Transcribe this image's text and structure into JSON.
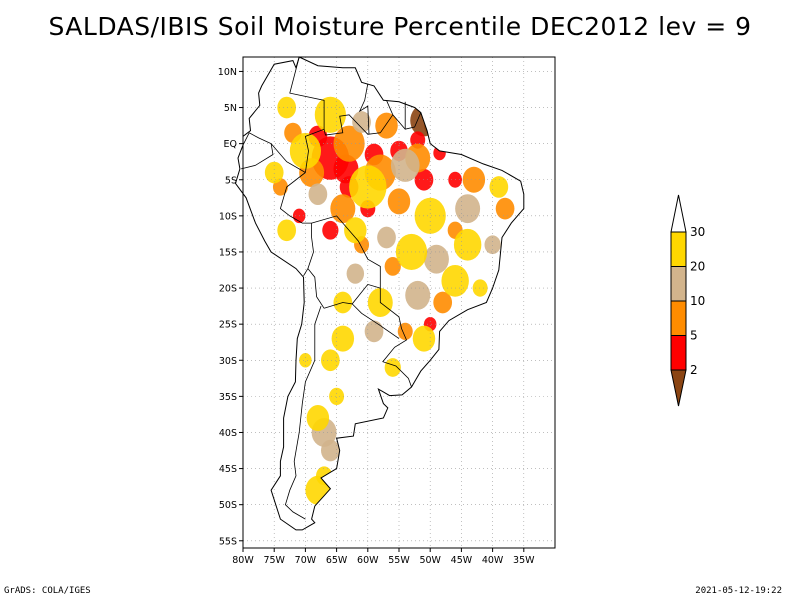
{
  "title": "SALDAS/IBIS Soil Moisture Percentile DEC2012 lev = 9",
  "footer": {
    "credit": "GrADS: COLA/IGES",
    "timestamp": "2021-05-12-19:22"
  },
  "map": {
    "lon_range": [
      -80,
      -30
    ],
    "lat_range": [
      -56,
      12
    ],
    "lat_ticks": [
      {
        "lat": 10,
        "label": "10N"
      },
      {
        "lat": 5,
        "label": "5N"
      },
      {
        "lat": 0,
        "label": "EQ"
      },
      {
        "lat": -5,
        "label": "5S"
      },
      {
        "lat": -10,
        "label": "10S"
      },
      {
        "lat": -15,
        "label": "15S"
      },
      {
        "lat": -20,
        "label": "20S"
      },
      {
        "lat": -25,
        "label": "25S"
      },
      {
        "lat": -30,
        "label": "30S"
      },
      {
        "lat": -35,
        "label": "35S"
      },
      {
        "lat": -40,
        "label": "40S"
      },
      {
        "lat": -45,
        "label": "45S"
      },
      {
        "lat": -50,
        "label": "50S"
      },
      {
        "lat": -55,
        "label": "55S"
      }
    ],
    "lon_ticks": [
      {
        "lon": -80,
        "label": "80W"
      },
      {
        "lon": -75,
        "label": "75W"
      },
      {
        "lon": -70,
        "label": "70W"
      },
      {
        "lon": -65,
        "label": "65W"
      },
      {
        "lon": -60,
        "label": "60W"
      },
      {
        "lon": -55,
        "label": "55W"
      },
      {
        "lon": -50,
        "label": "50W"
      },
      {
        "lon": -45,
        "label": "45W"
      },
      {
        "lon": -40,
        "label": "40W"
      },
      {
        "lon": -35,
        "label": "35W"
      }
    ],
    "grid": true,
    "coastline": [
      [
        -77,
        8
      ],
      [
        -75,
        11
      ],
      [
        -72,
        11.5
      ],
      [
        -71.5,
        10.5
      ],
      [
        -71,
        12
      ],
      [
        -68,
        10.8
      ],
      [
        -64,
        10.5
      ],
      [
        -62,
        10.5
      ],
      [
        -61,
        8.5
      ],
      [
        -59,
        8
      ],
      [
        -57.5,
        6
      ],
      [
        -55,
        5.8
      ],
      [
        -52.5,
        5
      ],
      [
        -51.5,
        4.3
      ],
      [
        -50.5,
        1.8
      ],
      [
        -50,
        0
      ],
      [
        -48.5,
        -1
      ],
      [
        -45,
        -1.5
      ],
      [
        -41.5,
        -2.8
      ],
      [
        -38.5,
        -3.7
      ],
      [
        -35.5,
        -5.2
      ],
      [
        -35,
        -7
      ],
      [
        -35,
        -9
      ],
      [
        -37,
        -11
      ],
      [
        -38.5,
        -13
      ],
      [
        -39,
        -17.5
      ],
      [
        -40,
        -20
      ],
      [
        -41,
        -22
      ],
      [
        -44,
        -23
      ],
      [
        -47,
        -24.5
      ],
      [
        -48.5,
        -26
      ],
      [
        -48.6,
        -28.5
      ],
      [
        -50,
        -30
      ],
      [
        -51.5,
        -31.5
      ],
      [
        -53,
        -33.7
      ],
      [
        -54.5,
        -34.8
      ],
      [
        -56.5,
        -34.9
      ],
      [
        -58.3,
        -34
      ],
      [
        -57.5,
        -36
      ],
      [
        -56.8,
        -36.6
      ],
      [
        -57.5,
        -38
      ],
      [
        -62,
        -38.8
      ],
      [
        -62.3,
        -40.5
      ],
      [
        -65,
        -40.8
      ],
      [
        -64.5,
        -42.5
      ],
      [
        -65,
        -45
      ],
      [
        -67.5,
        -46.3
      ],
      [
        -66,
        -47.8
      ],
      [
        -68.5,
        -50.2
      ],
      [
        -69,
        -52
      ],
      [
        -68.5,
        -52.5
      ],
      [
        -70.5,
        -53.5
      ],
      [
        -71.5,
        -53.5
      ],
      [
        -74,
        -52
      ],
      [
        -75.5,
        -48
      ],
      [
        -74,
        -46
      ],
      [
        -74,
        -44
      ],
      [
        -73.5,
        -42
      ],
      [
        -73.5,
        -38
      ],
      [
        -72.8,
        -35
      ],
      [
        -71.6,
        -33
      ],
      [
        -71.5,
        -30
      ],
      [
        -71.3,
        -27
      ],
      [
        -70.6,
        -25
      ],
      [
        -70.2,
        -22
      ],
      [
        -70.3,
        -18.5
      ],
      [
        -71.5,
        -17.3
      ],
      [
        -75.5,
        -15
      ],
      [
        -76.5,
        -13.5
      ],
      [
        -78,
        -11
      ],
      [
        -79.5,
        -7.5
      ],
      [
        -81.2,
        -5.5
      ],
      [
        -80.5,
        -3.5
      ],
      [
        -80.8,
        -2
      ],
      [
        -80,
        -0.2
      ],
      [
        -80,
        1
      ],
      [
        -78.8,
        1.8
      ],
      [
        -79,
        3.5
      ],
      [
        -77.3,
        5.3
      ],
      [
        -77.5,
        7
      ],
      [
        -77,
        8
      ]
    ],
    "borders": [
      [
        [
          -71,
          12
        ],
        [
          -72.5,
          7
        ],
        [
          -67,
          6
        ],
        [
          -67,
          2
        ],
        [
          -70,
          1
        ],
        [
          -69.5,
          -1
        ],
        [
          -70,
          -4
        ]
      ],
      [
        [
          -70,
          -4
        ],
        [
          -73,
          -6
        ],
        [
          -74,
          -9
        ],
        [
          -72.5,
          -10
        ],
        [
          -70.5,
          -11
        ],
        [
          -69,
          -11
        ]
      ],
      [
        [
          -69,
          -11
        ],
        [
          -65,
          -10
        ],
        [
          -61.5,
          -13.5
        ],
        [
          -60,
          -16
        ],
        [
          -58,
          -17
        ],
        [
          -58,
          -20
        ],
        [
          -58,
          -22
        ],
        [
          -55,
          -24
        ],
        [
          -54.6,
          -25.6
        ]
      ],
      [
        [
          -54.6,
          -25.6
        ],
        [
          -53.8,
          -27.2
        ],
        [
          -55.7,
          -28.2
        ],
        [
          -57.6,
          -30.2
        ],
        [
          -55.5,
          -30.8
        ],
        [
          -53.5,
          -32.5
        ],
        [
          -53,
          -33.7
        ]
      ],
      [
        [
          -56,
          4
        ],
        [
          -58,
          1.5
        ],
        [
          -60,
          1.3
        ],
        [
          -63,
          4
        ],
        [
          -64.5,
          3.8
        ],
        [
          -64,
          1.5
        ],
        [
          -66.8,
          1.2
        ],
        [
          -67,
          2
        ]
      ],
      [
        [
          -57,
          6
        ],
        [
          -56,
          4
        ],
        [
          -54,
          2
        ],
        [
          -52.5,
          2.3
        ],
        [
          -51.5,
          4.3
        ]
      ],
      [
        [
          -54,
          5.8
        ],
        [
          -54,
          2
        ]
      ],
      [
        [
          -60,
          8.3
        ],
        [
          -60.5,
          6
        ],
        [
          -61.3,
          4.5
        ],
        [
          -60,
          5.2
        ],
        [
          -59.8,
          1.3
        ]
      ],
      [
        [
          -80,
          -0.2
        ],
        [
          -79,
          1.5
        ],
        [
          -77.5,
          0.8
        ],
        [
          -75.5,
          0
        ],
        [
          -75.2,
          -1.5
        ],
        [
          -78,
          -3
        ],
        [
          -80.3,
          -3.5
        ]
      ],
      [
        [
          -75.5,
          0
        ],
        [
          -73,
          -2.5
        ],
        [
          -70,
          -4
        ]
      ],
      [
        [
          -69,
          -11
        ],
        [
          -69,
          -13
        ],
        [
          -68.7,
          -15
        ],
        [
          -69.6,
          -17.3
        ],
        [
          -68.5,
          -18.5
        ],
        [
          -68.2,
          -21.2
        ],
        [
          -67,
          -22.8
        ]
      ],
      [
        [
          -70.3,
          -18.3
        ],
        [
          -69.6,
          -17.3
        ]
      ],
      [
        [
          -67,
          -22.8
        ],
        [
          -64,
          -22
        ],
        [
          -62.5,
          -22.2
        ],
        [
          -60,
          -19.5
        ],
        [
          -58,
          -20
        ]
      ],
      [
        [
          -62.5,
          -22.2
        ],
        [
          -61,
          -23.5
        ],
        [
          -58,
          -25.2
        ],
        [
          -55,
          -27
        ]
      ],
      [
        [
          -67.5,
          -22.5
        ],
        [
          -68.5,
          -25
        ],
        [
          -68.5,
          -30
        ],
        [
          -70,
          -33
        ],
        [
          -70.5,
          -36
        ],
        [
          -71,
          -40
        ],
        [
          -71.8,
          -44
        ],
        [
          -71.5,
          -46
        ],
        [
          -72.5,
          -48
        ],
        [
          -73.2,
          -50
        ],
        [
          -72,
          -51
        ],
        [
          -70,
          -52
        ]
      ]
    ],
    "soil_patches": [
      {
        "lon": -51,
        "lat": 3.2,
        "r": 2.2,
        "cls": "lt2"
      },
      {
        "lon": -49.5,
        "lat": 2.5,
        "r": 1.5,
        "cls": "lt2"
      },
      {
        "lon": -52,
        "lat": 0.5,
        "r": 1.2,
        "cls": "p2-5"
      },
      {
        "lon": -48.5,
        "lat": -1.3,
        "r": 1,
        "cls": "p2-5"
      },
      {
        "lon": -66,
        "lat": -2,
        "r": 3,
        "cls": "p2-5"
      },
      {
        "lon": -63.5,
        "lat": -3.5,
        "r": 2,
        "cls": "p2-5"
      },
      {
        "lon": -68,
        "lat": 1,
        "r": 1.5,
        "cls": "p2-5"
      },
      {
        "lon": -59,
        "lat": -1.5,
        "r": 1.5,
        "cls": "p2-5"
      },
      {
        "lon": -55,
        "lat": -1,
        "r": 1.4,
        "cls": "p2-5"
      },
      {
        "lon": -51,
        "lat": -5,
        "r": 1.5,
        "cls": "p2-5"
      },
      {
        "lon": -46,
        "lat": -5,
        "r": 1.1,
        "cls": "p2-5"
      },
      {
        "lon": -66,
        "lat": -12,
        "r": 1.3,
        "cls": "p2-5"
      },
      {
        "lon": -71,
        "lat": -10,
        "r": 1,
        "cls": "p2-5"
      },
      {
        "lon": -60,
        "lat": -9,
        "r": 1.2,
        "cls": "p2-5"
      },
      {
        "lon": -50,
        "lat": -25,
        "r": 1,
        "cls": "p2-5"
      },
      {
        "lon": -63,
        "lat": -6,
        "r": 1.5,
        "cls": "p2-5"
      },
      {
        "lon": -63,
        "lat": 0,
        "r": 2.5,
        "cls": "p5-10"
      },
      {
        "lon": -58,
        "lat": -4,
        "r": 2.5,
        "cls": "p5-10"
      },
      {
        "lon": -52,
        "lat": -2,
        "r": 2,
        "cls": "p5-10"
      },
      {
        "lon": -69,
        "lat": -4,
        "r": 2,
        "cls": "p5-10"
      },
      {
        "lon": -64,
        "lat": -9,
        "r": 2,
        "cls": "p5-10"
      },
      {
        "lon": -55,
        "lat": -8,
        "r": 1.8,
        "cls": "p5-10"
      },
      {
        "lon": -43,
        "lat": -5,
        "r": 1.8,
        "cls": "p5-10"
      },
      {
        "lon": -38,
        "lat": -9,
        "r": 1.5,
        "cls": "p5-10"
      },
      {
        "lon": -48,
        "lat": -22,
        "r": 1.5,
        "cls": "p5-10"
      },
      {
        "lon": -54,
        "lat": -26,
        "r": 1.2,
        "cls": "p5-10"
      },
      {
        "lon": -56,
        "lat": -17,
        "r": 1.3,
        "cls": "p5-10"
      },
      {
        "lon": -72,
        "lat": 1.5,
        "r": 1.4,
        "cls": "p5-10"
      },
      {
        "lon": -57,
        "lat": 2.5,
        "r": 1.8,
        "cls": "p5-10"
      },
      {
        "lon": -74,
        "lat": -6,
        "r": 1.2,
        "cls": "p5-10"
      },
      {
        "lon": -46,
        "lat": -12,
        "r": 1.2,
        "cls": "p5-10"
      },
      {
        "lon": -61,
        "lat": -14,
        "r": 1.2,
        "cls": "p5-10"
      },
      {
        "lon": -54,
        "lat": -3,
        "r": 2.3,
        "cls": "p10-20"
      },
      {
        "lon": -44,
        "lat": -9,
        "r": 2,
        "cls": "p10-20"
      },
      {
        "lon": -49,
        "lat": -16,
        "r": 2,
        "cls": "p10-20"
      },
      {
        "lon": -52,
        "lat": -21,
        "r": 2,
        "cls": "p10-20"
      },
      {
        "lon": -67,
        "lat": -40,
        "r": 2,
        "cls": "p10-20"
      },
      {
        "lon": -66,
        "lat": -42.5,
        "r": 1.5,
        "cls": "p10-20"
      },
      {
        "lon": -59,
        "lat": -26,
        "r": 1.5,
        "cls": "p10-20"
      },
      {
        "lon": -61,
        "lat": 3,
        "r": 1.5,
        "cls": "p10-20"
      },
      {
        "lon": -57,
        "lat": -13,
        "r": 1.5,
        "cls": "p10-20"
      },
      {
        "lon": -62,
        "lat": -18,
        "r": 1.4,
        "cls": "p10-20"
      },
      {
        "lon": -40,
        "lat": -14,
        "r": 1.3,
        "cls": "p10-20"
      },
      {
        "lon": -68,
        "lat": -7,
        "r": 1.5,
        "cls": "p10-20"
      },
      {
        "lon": -66,
        "lat": 4,
        "r": 2.5,
        "cls": "p20-30"
      },
      {
        "lon": -70,
        "lat": -1,
        "r": 2.5,
        "cls": "p20-30"
      },
      {
        "lon": -60,
        "lat": -6,
        "r": 3,
        "cls": "p20-30"
      },
      {
        "lon": -50,
        "lat": -10,
        "r": 2.5,
        "cls": "p20-30"
      },
      {
        "lon": -44,
        "lat": -14,
        "r": 2.2,
        "cls": "p20-30"
      },
      {
        "lon": -53,
        "lat": -15,
        "r": 2.5,
        "cls": "p20-30"
      },
      {
        "lon": -58,
        "lat": -22,
        "r": 2,
        "cls": "p20-30"
      },
      {
        "lon": -46,
        "lat": -19,
        "r": 2.2,
        "cls": "p20-30"
      },
      {
        "lon": -51,
        "lat": -27,
        "r": 1.8,
        "cls": "p20-30"
      },
      {
        "lon": -64,
        "lat": -27,
        "r": 1.8,
        "cls": "p20-30"
      },
      {
        "lon": -66,
        "lat": -30,
        "r": 1.5,
        "cls": "p20-30"
      },
      {
        "lon": -68,
        "lat": -38,
        "r": 1.8,
        "cls": "p20-30"
      },
      {
        "lon": -68,
        "lat": -48,
        "r": 2,
        "cls": "p20-30"
      },
      {
        "lon": -67,
        "lat": -46,
        "r": 1.3,
        "cls": "p20-30"
      },
      {
        "lon": -75,
        "lat": -4,
        "r": 1.5,
        "cls": "p20-30"
      },
      {
        "lon": -73,
        "lat": -12,
        "r": 1.5,
        "cls": "p20-30"
      },
      {
        "lon": -39,
        "lat": -6,
        "r": 1.5,
        "cls": "p20-30"
      },
      {
        "lon": -56,
        "lat": -31,
        "r": 1.3,
        "cls": "p20-30"
      },
      {
        "lon": -62,
        "lat": -12,
        "r": 1.8,
        "cls": "p20-30"
      },
      {
        "lon": -73,
        "lat": 5,
        "r": 1.5,
        "cls": "p20-30"
      },
      {
        "lon": -64,
        "lat": -22,
        "r": 1.5,
        "cls": "p20-30"
      },
      {
        "lon": -70,
        "lat": -30,
        "r": 1,
        "cls": "p20-30"
      },
      {
        "lon": -42,
        "lat": -20,
        "r": 1.2,
        "cls": "p20-30"
      },
      {
        "lon": -65,
        "lat": -35,
        "r": 1.2,
        "cls": "p20-30"
      }
    ]
  },
  "legend": {
    "classes": [
      {
        "id": "lt2",
        "color": "#8b4513"
      },
      {
        "id": "p2-5",
        "color": "#ff0000"
      },
      {
        "id": "p5-10",
        "color": "#ff8c00"
      },
      {
        "id": "p10-20",
        "color": "#d2b48c"
      },
      {
        "id": "p20-30",
        "color": "#ffd700"
      },
      {
        "id": "gt30",
        "color": "#ffffff"
      }
    ],
    "labels": [
      "2",
      "5",
      "10",
      "20",
      "30"
    ]
  }
}
